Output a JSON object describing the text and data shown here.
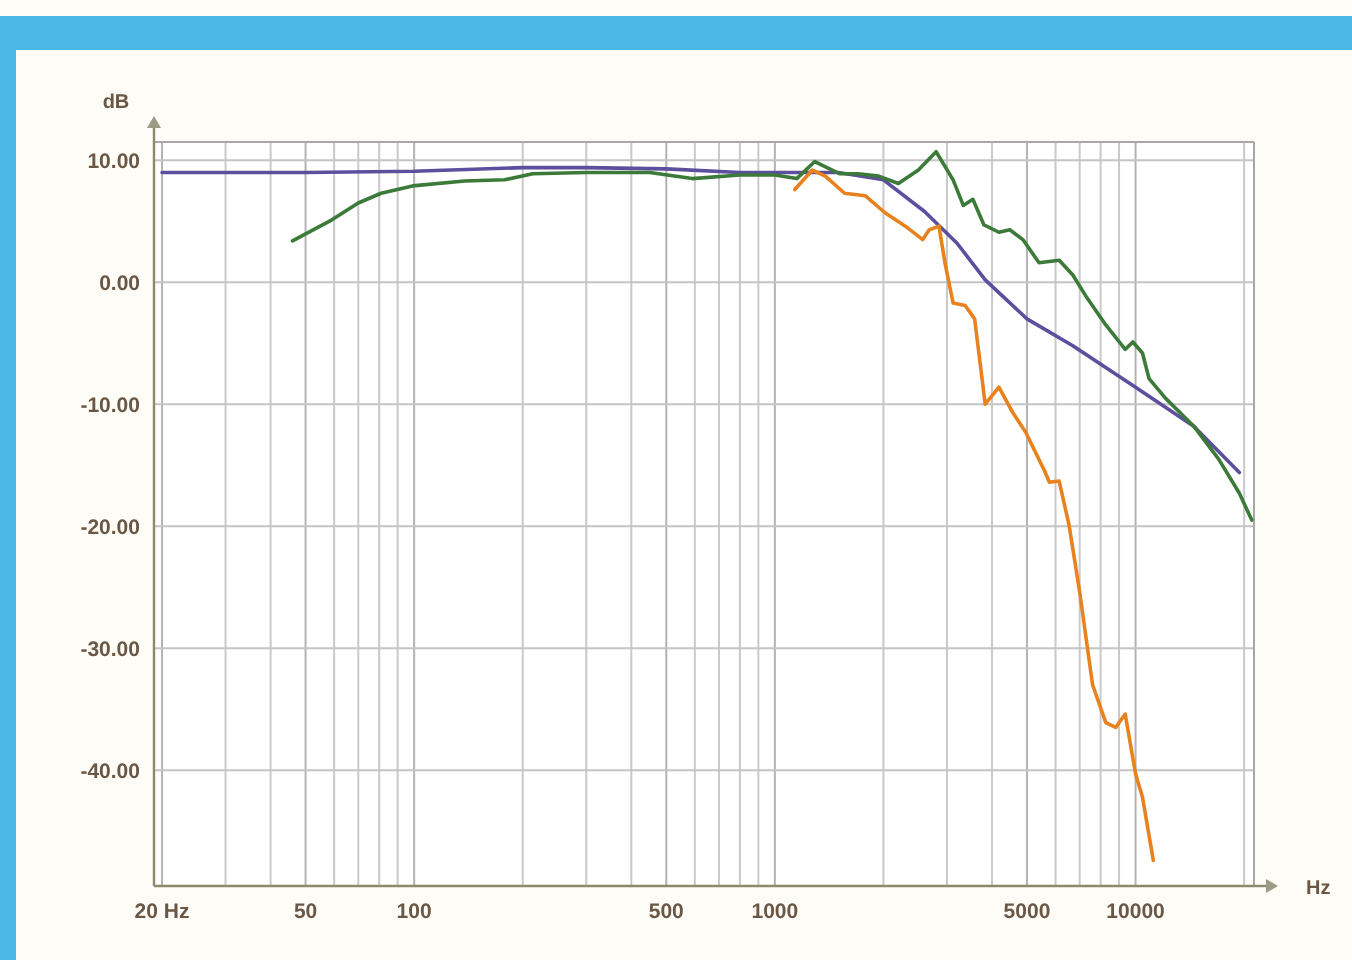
{
  "chart_data": {
    "type": "line",
    "xlabel": "Hz",
    "ylabel": "dB",
    "log": "x",
    "grid": true,
    "xlim": [
      19,
      21300
    ],
    "ylim": [
      -49.5,
      11.5
    ],
    "xticks": [
      {
        "value": 20,
        "label": "20 Hz"
      },
      {
        "value": 30,
        "label": null
      },
      {
        "value": 40,
        "label": null
      },
      50,
      {
        "value": 60,
        "label": null
      },
      {
        "value": 70,
        "label": null
      },
      {
        "value": 80,
        "label": null
      },
      {
        "value": 90,
        "label": null
      },
      100,
      {
        "value": 200,
        "label": null
      },
      {
        "value": 300,
        "label": null
      },
      {
        "value": 400,
        "label": null
      },
      500,
      {
        "value": 600,
        "label": null
      },
      {
        "value": 700,
        "label": null
      },
      {
        "value": 800,
        "label": null
      },
      {
        "value": 900,
        "label": null
      },
      1000,
      {
        "value": 2000,
        "label": null
      },
      {
        "value": 3000,
        "label": null
      },
      {
        "value": 4000,
        "label": null
      },
      5000,
      {
        "value": 6000,
        "label": null
      },
      {
        "value": 7000,
        "label": null
      },
      {
        "value": 8000,
        "label": null
      },
      {
        "value": 9000,
        "label": null
      },
      10000,
      {
        "value": 20000,
        "label": null
      }
    ],
    "yticks": [
      {
        "value": 10,
        "label": "10.00"
      },
      {
        "value": 0,
        "label": "0.00"
      },
      {
        "value": -10,
        "label": "-10.00"
      },
      {
        "value": -20,
        "label": "-20.00"
      },
      {
        "value": -30,
        "label": "-30.00"
      },
      {
        "value": -40,
        "label": "-40.00"
      }
    ],
    "series": [
      {
        "color": "#5b4f9e",
        "x": [
          20,
          50,
          100,
          200,
          300,
          500,
          800,
          1000,
          1500,
          2000,
          2600,
          3200,
          3830,
          5000,
          6700,
          10000,
          14500,
          19400
        ],
        "values": [
          9.0,
          9.0,
          9.1,
          9.4,
          9.4,
          9.3,
          9.0,
          9.0,
          9.0,
          8.4,
          5.8,
          3.2,
          0.2,
          -3.0,
          -5.2,
          -8.6,
          -11.8,
          -15.6
        ]
      },
      {
        "color": "#3c7a3a",
        "x": [
          46,
          59,
          70,
          81,
          99,
          138,
          178,
          213,
          300,
          450,
          590,
          800,
          1000,
          1150,
          1290,
          1510,
          1700,
          1940,
          2200,
          2500,
          2800,
          3120,
          3330,
          3540,
          3800,
          4180,
          4480,
          4870,
          5400,
          6140,
          6700,
          7270,
          8270,
          9360,
          9830,
          10450,
          10900,
          12100,
          14500,
          17000,
          19400,
          21000
        ],
        "values": [
          3.4,
          5.1,
          6.5,
          7.3,
          7.9,
          8.3,
          8.4,
          8.9,
          9.0,
          9.0,
          8.5,
          8.8,
          8.8,
          8.5,
          9.9,
          8.9,
          8.9,
          8.7,
          8.1,
          9.2,
          10.7,
          8.4,
          6.3,
          6.8,
          4.7,
          4.1,
          4.3,
          3.5,
          1.6,
          1.8,
          0.6,
          -1.1,
          -3.5,
          -5.5,
          -4.9,
          -5.8,
          -7.9,
          -9.5,
          -11.8,
          -14.5,
          -17.3,
          -19.5
        ]
      },
      {
        "color": "#e8821e",
        "x": [
          1136,
          1270,
          1380,
          1560,
          1780,
          2020,
          2300,
          2570,
          2680,
          2850,
          2970,
          3120,
          3370,
          3580,
          3830,
          4180,
          4570,
          4960,
          5600,
          5770,
          6140,
          6540,
          7000,
          7600,
          8270,
          8810,
          9360,
          10000,
          10450,
          11200
        ],
        "values": [
          7.6,
          9.2,
          8.7,
          7.3,
          7.1,
          5.7,
          4.6,
          3.5,
          4.3,
          4.6,
          1.4,
          -1.7,
          -1.9,
          -3.0,
          -10.0,
          -8.6,
          -10.7,
          -12.3,
          -15.5,
          -16.4,
          -16.3,
          -19.9,
          -25.4,
          -33.0,
          -36.1,
          -36.5,
          -35.4,
          -40.3,
          -42.2,
          -47.4
        ]
      }
    ]
  }
}
